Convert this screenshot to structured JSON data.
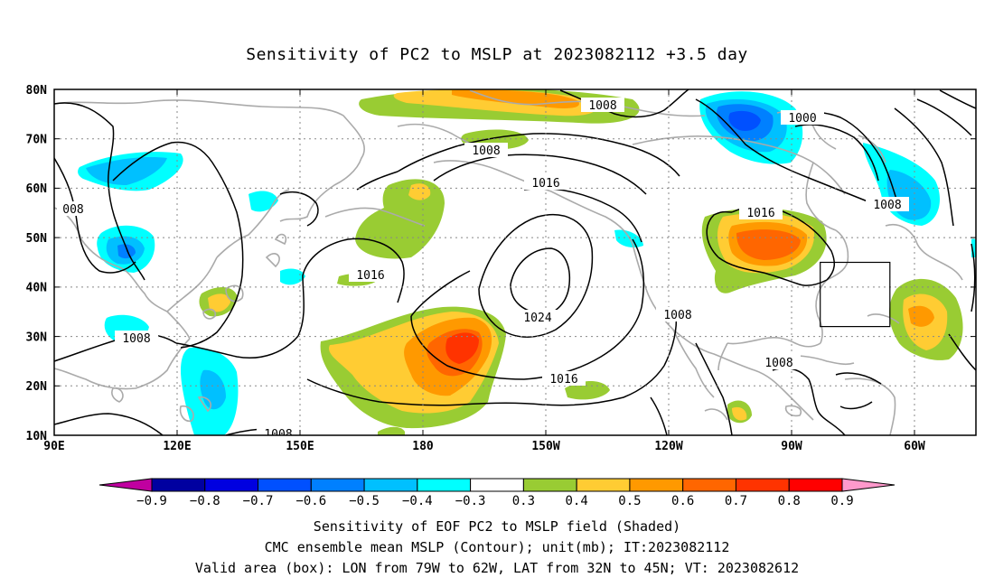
{
  "title": "Sensitivity of PC2 to MSLP at 2023082112 +3.5 day",
  "map": {
    "lat_labels": [
      "80N",
      "70N",
      "60N",
      "50N",
      "40N",
      "30N",
      "20N",
      "10N"
    ],
    "lon_labels": [
      "90E",
      "120E",
      "150E",
      "180",
      "150W",
      "120W",
      "90W",
      "60W"
    ],
    "contour_labels": [
      {
        "text": "1008",
        "name": "contour-label-1008-arctic"
      },
      {
        "text": "1000",
        "name": "contour-label-1000"
      },
      {
        "text": "1008",
        "name": "contour-label-1008-north-pacific"
      },
      {
        "text": "1016",
        "name": "contour-label-1016-north"
      },
      {
        "text": "1016",
        "name": "contour-label-1016-hudson"
      },
      {
        "text": "1008",
        "name": "contour-label-1008-atlantic"
      },
      {
        "text": "008",
        "name": "contour-label-008-west"
      },
      {
        "text": "1016",
        "name": "contour-label-1016-west-pacific"
      },
      {
        "text": "1024",
        "name": "contour-label-1024"
      },
      {
        "text": "1008",
        "name": "contour-label-1008-mexico"
      },
      {
        "text": "1008",
        "name": "contour-label-1008-south-china"
      },
      {
        "text": "1016",
        "name": "contour-label-1016-south"
      },
      {
        "text": "1008",
        "name": "contour-label-1008-caribbean"
      },
      {
        "text": "1008",
        "name": "contour-label-1008-bottom"
      }
    ]
  },
  "colorbar": {
    "colors": [
      "#c000a0",
      "#0000a0",
      "#0000e0",
      "#0050ff",
      "#0080ff",
      "#00c0ff",
      "#00ffff",
      "#ffffff",
      "#99cc33",
      "#ffcc33",
      "#ff9900",
      "#ff6600",
      "#ff3300",
      "#ff0000",
      "#ff99cc"
    ],
    "labels": [
      "-0.9",
      "-0.8",
      "-0.7",
      "-0.6",
      "-0.5",
      "-0.4",
      "-0.3",
      "0.3",
      "0.4",
      "0.5",
      "0.6",
      "0.7",
      "0.8",
      "0.9"
    ]
  },
  "captions": {
    "line1": "Sensitivity of EOF PC2 to MSLP field (Shaded)",
    "line2": "CMC ensemble mean MSLP (Contour); unit(mb); IT:2023082112",
    "line3": "Valid area (box): LON from 79W to 62W, LAT from 32N to 45N; VT: 2023082612"
  }
}
